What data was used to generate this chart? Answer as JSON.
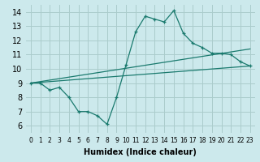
{
  "title": "",
  "xlabel": "Humidex (Indice chaleur)",
  "bg_color": "#cce9ec",
  "grid_color": "#aacccc",
  "line_color": "#1a7a6e",
  "xlim": [
    -0.5,
    23.5
  ],
  "ylim": [
    5.5,
    14.5
  ],
  "xticks": [
    0,
    1,
    2,
    3,
    4,
    5,
    6,
    7,
    8,
    9,
    10,
    11,
    12,
    13,
    14,
    15,
    16,
    17,
    18,
    19,
    20,
    21,
    22,
    23
  ],
  "yticks": [
    6,
    7,
    8,
    9,
    10,
    11,
    12,
    13,
    14
  ],
  "line1_x": [
    0,
    1,
    2,
    3,
    4,
    5,
    6,
    7,
    8,
    9,
    10,
    11,
    12,
    13,
    14,
    15,
    16,
    17,
    18,
    19,
    20,
    21,
    22,
    23
  ],
  "line1_y": [
    9.0,
    9.0,
    8.5,
    8.7,
    8.0,
    7.0,
    7.0,
    6.7,
    6.1,
    8.0,
    10.3,
    12.6,
    13.7,
    13.5,
    13.3,
    14.1,
    12.5,
    11.8,
    11.5,
    11.1,
    11.1,
    11.0,
    10.5,
    10.2
  ],
  "line2_x": [
    0,
    23
  ],
  "line2_y": [
    9.0,
    10.2
  ],
  "line3_x": [
    0,
    23
  ],
  "line3_y": [
    9.0,
    11.4
  ],
  "xlabel_fontsize": 7,
  "tick_fontsize_x": 5.5,
  "tick_fontsize_y": 7
}
